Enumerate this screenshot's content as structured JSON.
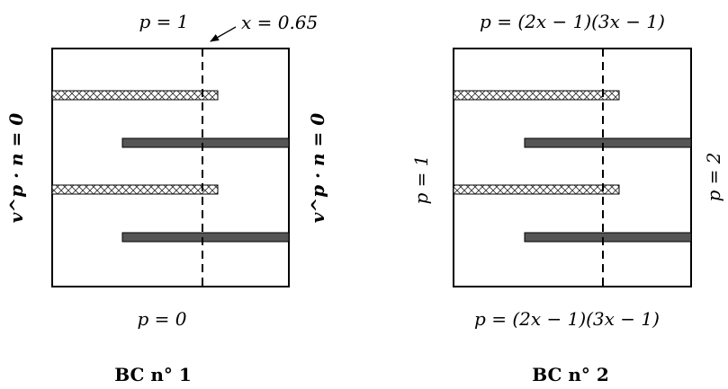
{
  "panels": [
    {
      "caption": "BC n° 1",
      "top_label": "p = 1",
      "bottom_label": "p = 0",
      "left_label": "v^p · n = 0",
      "right_label": "v^p · n = 0",
      "annotation": "x = 0.65"
    },
    {
      "caption": "BC n° 2",
      "top_label": "p = (2x − 1)(3x − 1)",
      "bottom_label": "p = (2x − 1)(3x − 1)",
      "left_label": "p = 1",
      "right_label": "p = 2"
    }
  ],
  "colors": {
    "solid_bar": "#555555",
    "hatched_bar_fill": "#ffffff",
    "stroke": "#000000"
  }
}
